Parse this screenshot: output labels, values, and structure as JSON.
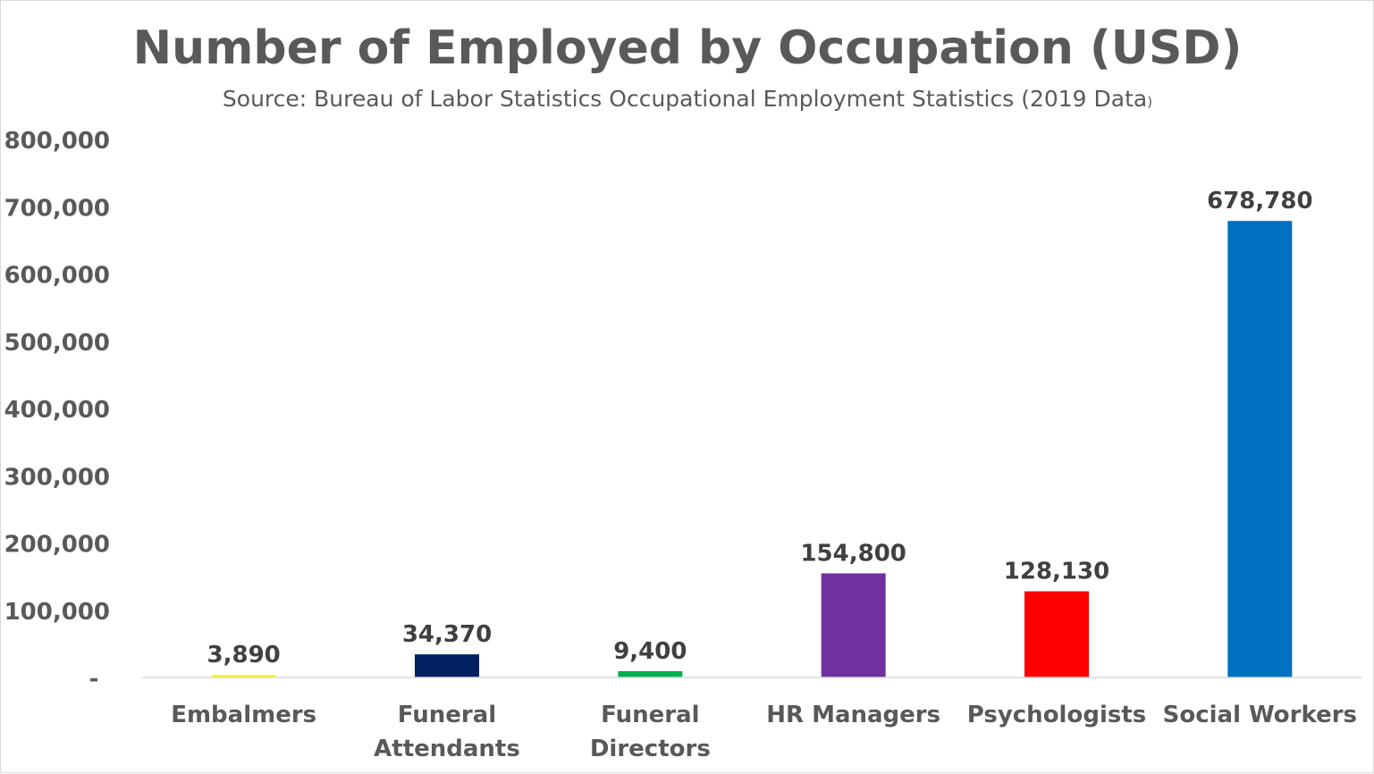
{
  "chart_data": {
    "type": "bar",
    "title": "Number of Employed by Occupation (USD)",
    "subtitle_main": "Source: Bureau of Labor Statistics Occupational Employment Statistics (2019 Data",
    "subtitle_tail": ")",
    "categories": [
      [
        "Embalmers"
      ],
      [
        "Funeral",
        "Attendants"
      ],
      [
        "Funeral",
        "Directors"
      ],
      [
        "HR Managers"
      ],
      [
        "Psychologists"
      ],
      [
        "Social Workers"
      ]
    ],
    "values": [
      3890,
      34370,
      9400,
      154800,
      128130,
      678780
    ],
    "data_labels": [
      "3,890",
      "34,370",
      "9,400",
      "154,800",
      "128,130",
      "678,780"
    ],
    "bar_colors": [
      "#FFFF00",
      "#002060",
      "#00B050",
      "#7030A0",
      "#FF0000",
      "#0070C0"
    ],
    "ylim": [
      0,
      800000
    ],
    "yticks": [
      0,
      100000,
      200000,
      300000,
      400000,
      500000,
      600000,
      700000,
      800000
    ],
    "ytick_labels": [
      "-",
      "100,000",
      "200,000",
      "300,000",
      "400,000",
      "500,000",
      "600,000",
      "700,000",
      "800,000"
    ],
    "xlabel": "",
    "ylabel": "",
    "grid": false,
    "legend": "none",
    "axis_color": "#d9d9d9",
    "text_color": "#595959"
  }
}
